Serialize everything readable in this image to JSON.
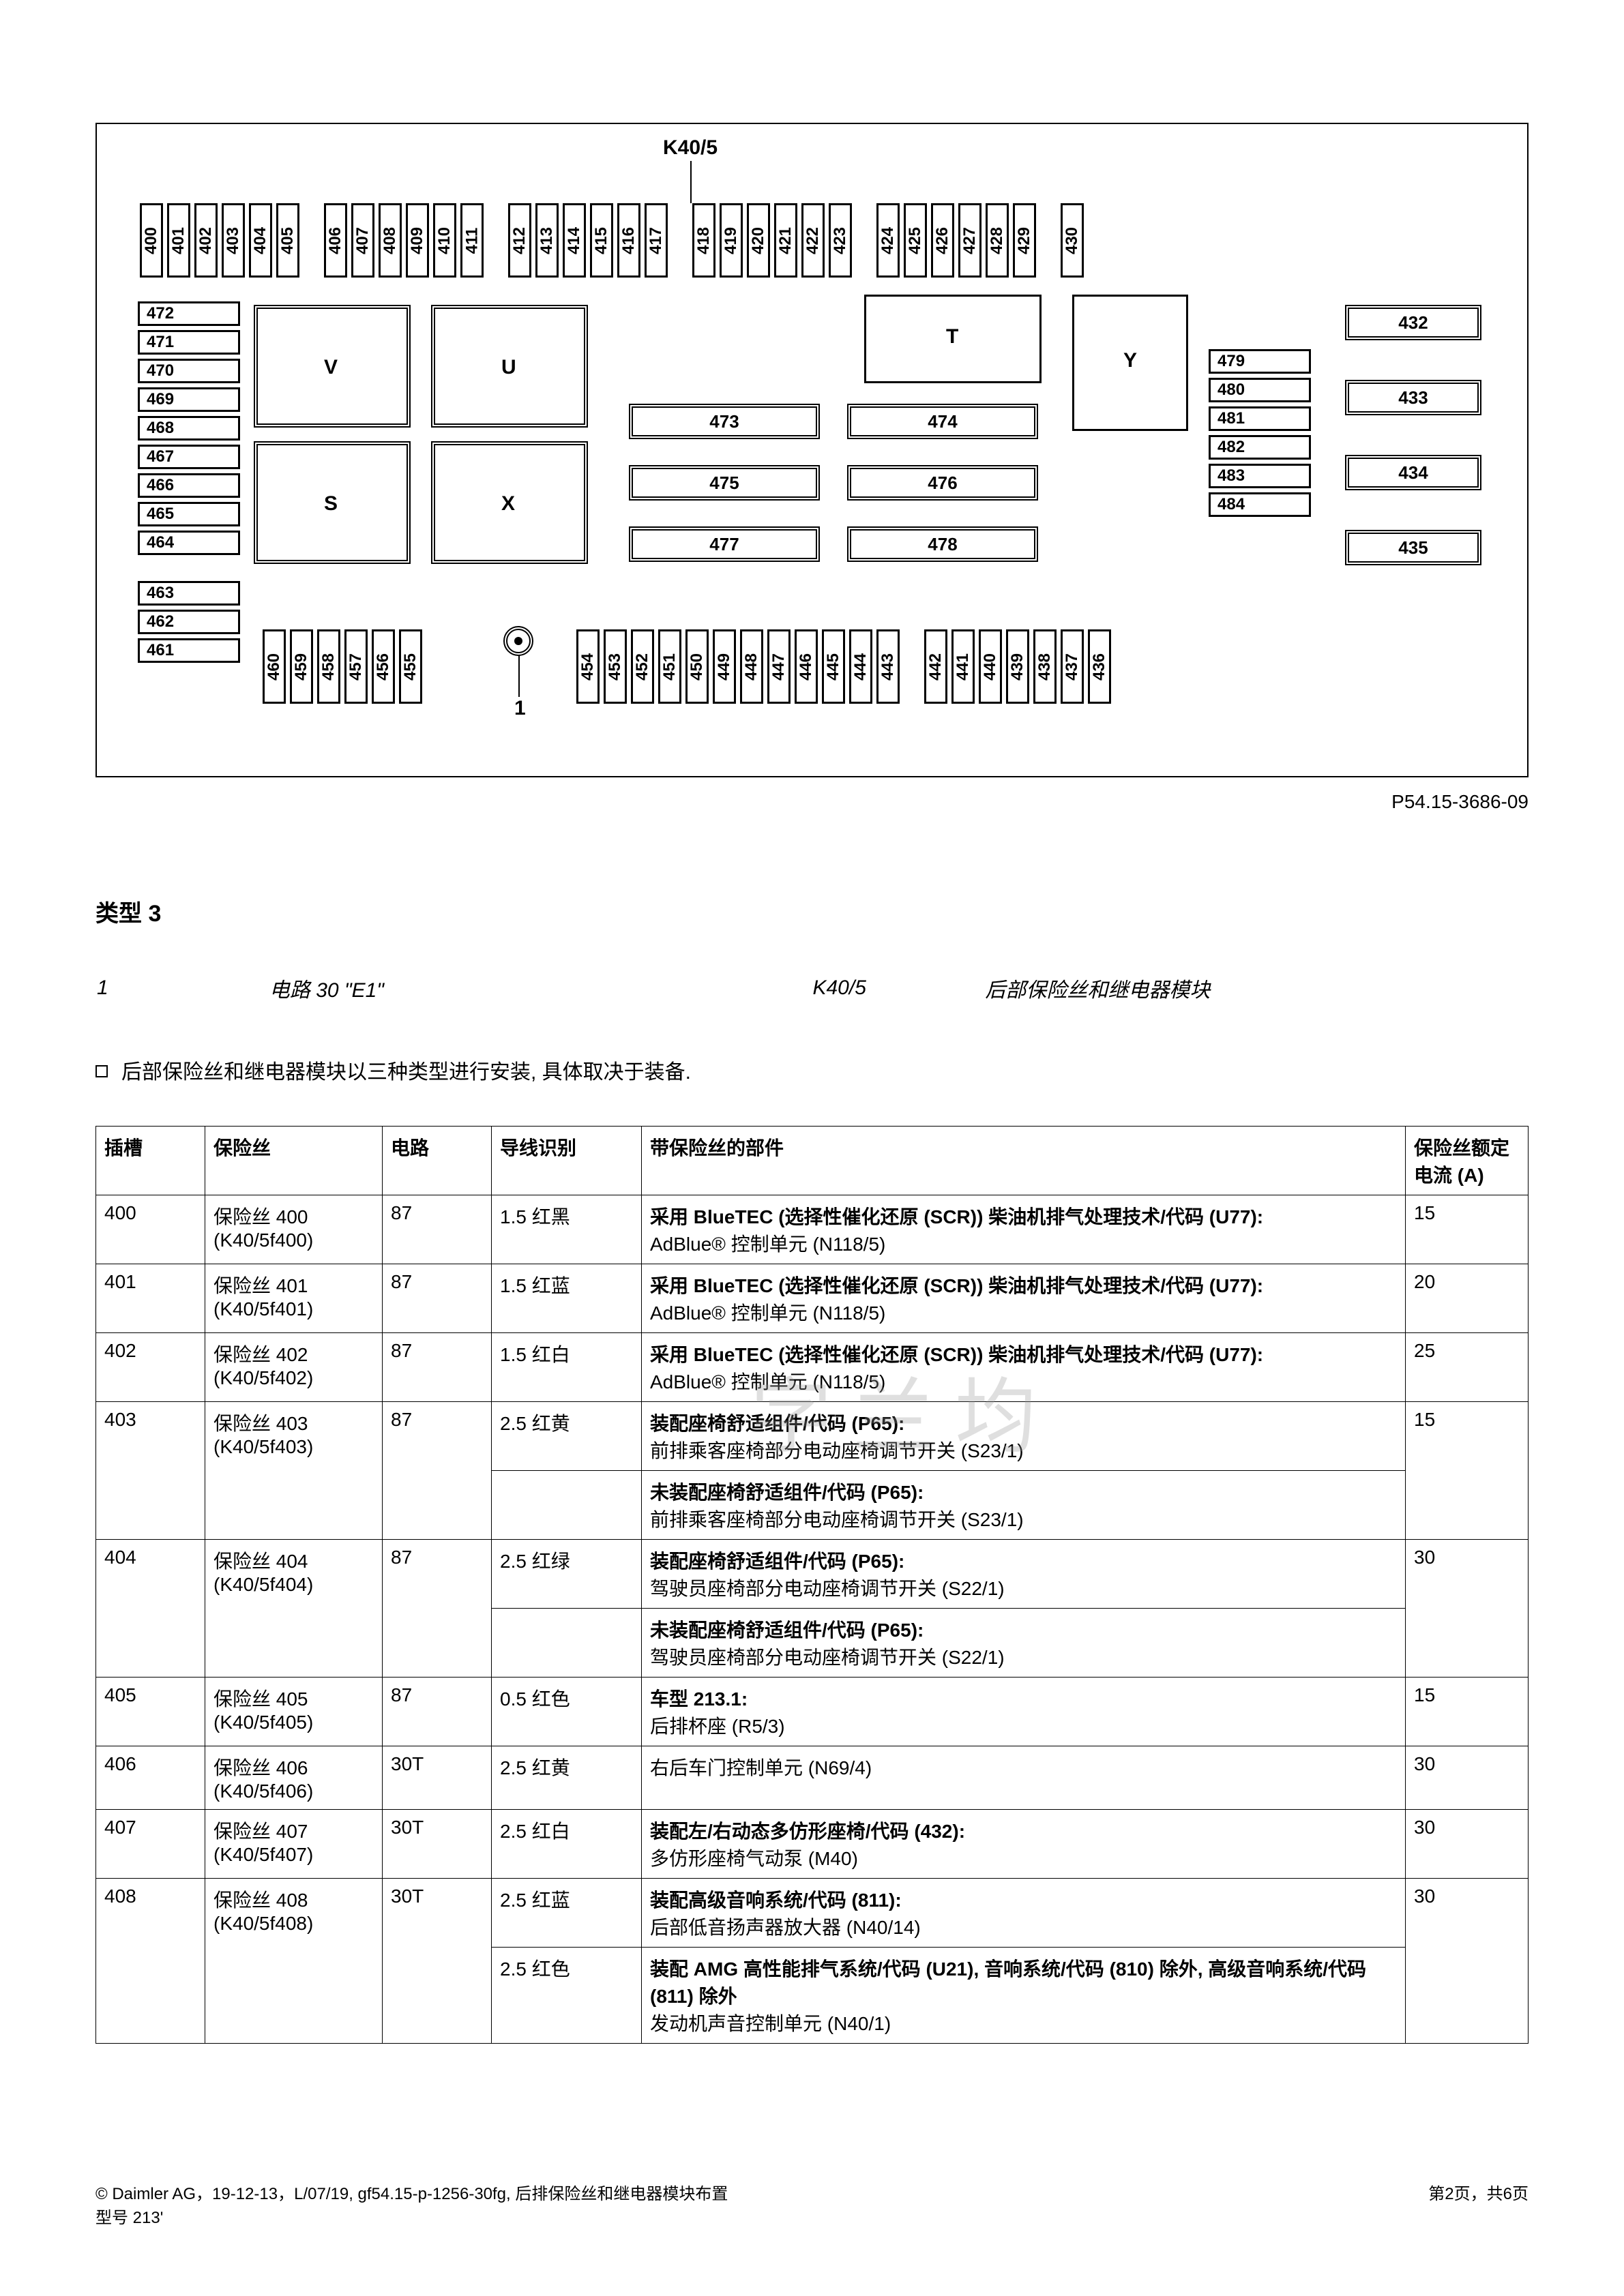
{
  "diagram": {
    "header_label": "K40/5",
    "pcode": "P54.15-3686-09",
    "top_fuses": [
      [
        "400",
        "401",
        "402",
        "403",
        "404",
        "405"
      ],
      [
        "406",
        "407",
        "408",
        "409",
        "410",
        "411"
      ],
      [
        "412",
        "413",
        "414",
        "415",
        "416",
        "417"
      ],
      [
        "418",
        "419",
        "420",
        "421",
        "422",
        "423"
      ],
      [
        "424",
        "425",
        "426",
        "427",
        "428",
        "429"
      ],
      [
        "430"
      ]
    ],
    "bot_fuses_left": [
      "460",
      "459",
      "458",
      "457",
      "456",
      "455"
    ],
    "bot_fuses_mid": [
      "454",
      "453",
      "452",
      "451",
      "450",
      "449",
      "448",
      "447",
      "446",
      "445",
      "444",
      "443"
    ],
    "bot_fuses_right": [
      "442",
      "441",
      "440",
      "439",
      "438",
      "437",
      "436"
    ],
    "left_stack_upper": [
      "472",
      "471",
      "470",
      "469",
      "468",
      "467",
      "466",
      "465",
      "464"
    ],
    "left_stack_lower": [
      "463",
      "462",
      "461"
    ],
    "right_stack_a": [
      "479",
      "480",
      "481",
      "482",
      "483",
      "484"
    ],
    "right_far": [
      "432",
      "433",
      "434",
      "435"
    ],
    "middle_dbl": [
      [
        "473",
        "474"
      ],
      [
        "475",
        "476"
      ],
      [
        "477",
        "478"
      ]
    ],
    "big_boxes": {
      "V": "V",
      "U": "U",
      "S": "S",
      "X": "X",
      "T": "T",
      "Y": "Y"
    },
    "num1": "1"
  },
  "section_title": "类型 3",
  "legend": [
    {
      "k": "1",
      "v": "电路 30 \"E1\""
    },
    {
      "k": "K40/5",
      "v": "后部保险丝和继电器模块"
    }
  ],
  "note": "后部保险丝和继电器模块以三种类型进行安装, 具体取决于装备.",
  "table": {
    "headers": [
      "插槽",
      "保险丝",
      "电路",
      "导线识别",
      "带保险丝的部件",
      "保险丝额定电流 (A)"
    ],
    "rows": [
      {
        "slot": "400",
        "fuse": "保险丝 400 (K40/5f400)",
        "circ": "87",
        "wire": "1.5 红黑",
        "compB": "采用 BlueTEC (选择性催化还原 (SCR)) 柴油机排气处理技术/代码 (U77):",
        "comp": "AdBlue® 控制单元 (N118/5)",
        "amp": "15"
      },
      {
        "slot": "401",
        "fuse": "保险丝 401 (K40/5f401)",
        "circ": "87",
        "wire": "1.5 红蓝",
        "compB": "采用 BlueTEC (选择性催化还原 (SCR)) 柴油机排气处理技术/代码 (U77):",
        "comp": "AdBlue® 控制单元 (N118/5)",
        "amp": "20"
      },
      {
        "slot": "402",
        "fuse": "保险丝 402 (K40/5f402)",
        "circ": "87",
        "wire": "1.5 红白",
        "compB": "采用 BlueTEC (选择性催化还原 (SCR)) 柴油机排气处理技术/代码 (U77):",
        "comp": "AdBlue® 控制单元 (N118/5)",
        "amp": "25"
      },
      {
        "slot": "403",
        "fuse": "保险丝 403 (K40/5f403)",
        "circ": "87",
        "wire": "2.5 红黄",
        "compB": "装配座椅舒适组件/代码 (P65):",
        "comp": "前排乘客座椅部分电动座椅调节开关 (S23/1)",
        "amp": "15",
        "extra": [
          {
            "compB": "未装配座椅舒适组件/代码 (P65):",
            "comp": "前排乘客座椅部分电动座椅调节开关 (S23/1)"
          }
        ]
      },
      {
        "slot": "404",
        "fuse": "保险丝 404 (K40/5f404)",
        "circ": "87",
        "wire": "2.5 红绿",
        "compB": "装配座椅舒适组件/代码 (P65):",
        "comp": "驾驶员座椅部分电动座椅调节开关 (S22/1)",
        "amp": "30",
        "extra": [
          {
            "compB": "未装配座椅舒适组件/代码 (P65):",
            "comp": "驾驶员座椅部分电动座椅调节开关 (S22/1)"
          }
        ]
      },
      {
        "slot": "405",
        "fuse": "保险丝 405 (K40/5f405)",
        "circ": "87",
        "wire": "0.5 红色",
        "compB": "车型 213.1:",
        "comp": "后排杯座 (R5/3)",
        "amp": "15"
      },
      {
        "slot": "406",
        "fuse": "保险丝 406 (K40/5f406)",
        "circ": "30T",
        "wire": "2.5 红黄",
        "compB": "",
        "comp": "右后车门控制单元 (N69/4)",
        "amp": "30"
      },
      {
        "slot": "407",
        "fuse": "保险丝 407 (K40/5f407)",
        "circ": "30T",
        "wire": "2.5 红白",
        "compB": "装配左/右动态多仿形座椅/代码 (432):",
        "comp": "多仿形座椅气动泵 (M40)",
        "amp": "30"
      },
      {
        "slot": "408",
        "fuse": "保险丝 408 (K40/5f408)",
        "circ": "30T",
        "wire": "2.5 红蓝",
        "compB": "装配高级音响系统/代码 (811):",
        "comp": "后部低音扬声器放大器 (N40/14)",
        "amp": "30",
        "extra": [
          {
            "wire": "2.5 红色",
            "compB": "装配 AMG 高性能排气系统/代码 (U21), 音响系统/代码 (810) 除外, 高级音响系统/代码 (811) 除外",
            "comp": "发动机声音控制单元 (N40/1)"
          }
        ]
      }
    ]
  },
  "footer": {
    "left1": "© Daimler AG，19-12-13，L/07/19, gf54.15-p-1256-30fg, 后排保险丝和继电器模块布置",
    "left2": "型号 213'",
    "right": "第2页，共6页"
  },
  "watermark": "字 兰 均"
}
